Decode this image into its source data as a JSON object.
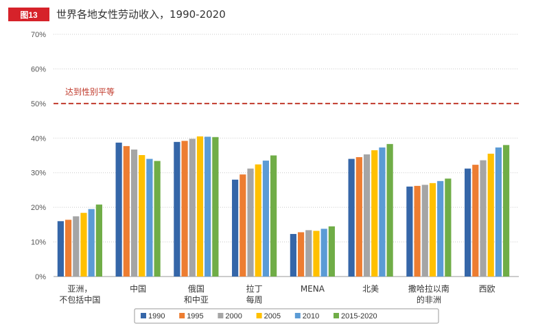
{
  "header": {
    "badge": "图13",
    "title": "世界各地女性劳动收入，1990-2020"
  },
  "colors": {
    "badge": "#d6222a",
    "parity_line": "#c0392b"
  },
  "chart_data": {
    "type": "bar",
    "title": "世界各地女性劳动收入，1990-2020",
    "xlabel": "",
    "ylabel": "",
    "ylim": [
      0,
      70
    ],
    "yticks": [
      "0%",
      "10%",
      "20%",
      "30%",
      "40%",
      "50%",
      "60%",
      "70%"
    ],
    "grid": true,
    "legend_position": "bottom",
    "categories": [
      [
        "亚洲，",
        "不包括中国"
      ],
      [
        "中国"
      ],
      [
        "俄国",
        "和中亚"
      ],
      [
        "拉丁",
        "每周"
      ],
      [
        "MENA"
      ],
      [
        "北美"
      ],
      [
        "撒哈拉以南",
        "的非洲"
      ],
      [
        "西欧"
      ]
    ],
    "reference_line": {
      "value": 50,
      "label": "达到性别平等"
    },
    "series": [
      {
        "name": "1990",
        "color": "#3566a8",
        "values": [
          16.0,
          38.7,
          38.9,
          28.0,
          12.3,
          34.0,
          26.0,
          31.2
        ]
      },
      {
        "name": "1995",
        "color": "#ed7d31",
        "values": [
          16.4,
          37.7,
          39.2,
          29.5,
          12.8,
          34.5,
          26.2,
          32.3
        ]
      },
      {
        "name": "2000",
        "color": "#a5a5a5",
        "values": [
          17.4,
          36.7,
          39.8,
          31.2,
          13.4,
          35.3,
          26.5,
          33.6
        ]
      },
      {
        "name": "2005",
        "color": "#ffc000",
        "values": [
          18.4,
          35.1,
          40.5,
          32.4,
          13.2,
          36.5,
          27.0,
          35.5
        ]
      },
      {
        "name": "2010",
        "color": "#5b9bd5",
        "values": [
          19.5,
          34.0,
          40.4,
          33.5,
          13.8,
          37.3,
          27.6,
          37.3
        ]
      },
      {
        "name": "2015-2020",
        "color": "#70ad47",
        "values": [
          20.8,
          33.4,
          40.3,
          35.0,
          14.5,
          38.3,
          28.3,
          38.0
        ]
      }
    ]
  }
}
